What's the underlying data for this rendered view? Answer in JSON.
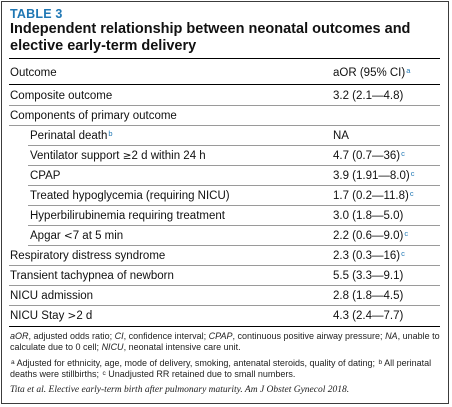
{
  "table": {
    "label": "TABLE 3",
    "title": "Independent relationship between neonatal outcomes and elective early-term delivery",
    "col_outcome": "Outcome",
    "col_aor": "aOR (95% CI)",
    "col_aor_sup": "a"
  },
  "rows": [
    {
      "pre": "Composite outcome",
      "value": "3.2 (2.1—4.8)"
    },
    {
      "pre": "Components of primary outcome",
      "value": ""
    },
    {
      "pre": "Perinatal death",
      "sup": "b",
      "value": "NA"
    },
    {
      "pre": "Ventilator support ",
      "glyph": "≥",
      "post": "2 d within 24 h",
      "value": "4.7 (0.7—36)",
      "value_sup": "c"
    },
    {
      "pre": "CPAP",
      "value": "3.9 (1.91—8.0)",
      "value_sup": "c"
    },
    {
      "pre": "Treated hypoglycemia (requiring NICU)",
      "value": "1.7 (0.2—11.8)",
      "value_sup": "c"
    },
    {
      "pre": "Hyperbilirubinemia requiring treatment",
      "value": "3.0 (1.8—5.0)"
    },
    {
      "pre": "Apgar ",
      "glyph": "<",
      "post": "7 at 5 min",
      "value": "2.2 (0.6—9.0)",
      "value_sup": "c"
    },
    {
      "pre": "Respiratory distress syndrome",
      "value": "2.3 (0.3—16)",
      "value_sup": "c"
    },
    {
      "pre": "Transient tachypnea of newborn",
      "value": "5.5 (3.3—9.1)"
    },
    {
      "pre": "NICU admission",
      "value": "2.8 (1.8—4.5)"
    },
    {
      "pre": "NICU Stay ",
      "glyph": ">",
      "post": "2 d",
      "value": "4.3 (2.4—7.7)"
    }
  ],
  "notes": {
    "abbrev_1": "aOR",
    "abbrev_2": ", adjusted odds ratio; ",
    "abbrev_3": "CI",
    "abbrev_4": ", confidence interval; ",
    "abbrev_5": "CPAP",
    "abbrev_6": ", continuous positive airway pressure; ",
    "abbrev_7": "NA",
    "abbrev_8": ", unable to calculate due to 0 cell; ",
    "abbrev_9": "NICU",
    "abbrev_10": ", neonatal intensive care unit.",
    "fn_a_mark": "a",
    "fn_a": " Adjusted for ethnicity, age, mode of delivery, smoking, antenatal steroids, quality of dating; ",
    "fn_b_mark": "b",
    "fn_b": " All perinatal deaths were stillbirths; ",
    "fn_c_mark": "c",
    "fn_c": " Unadjusted RR retained due to small numbers.",
    "citation": "Tita et al. Elective early-term birth after pulmonary maturity. Am J Obstet Gynecol 2018."
  }
}
